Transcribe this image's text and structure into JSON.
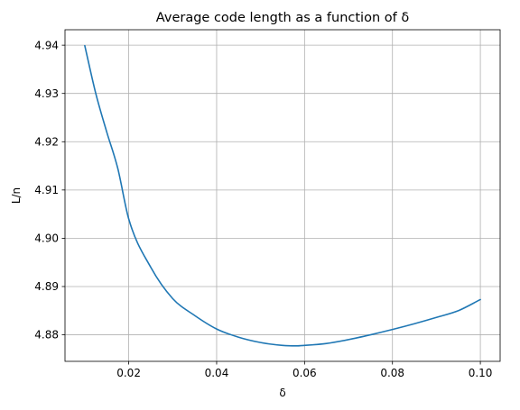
{
  "chart_data": {
    "type": "line",
    "title": "Average code length as a function of δ",
    "xlabel": "δ",
    "ylabel": "L/n",
    "xlim": [
      0.0055,
      0.1045
    ],
    "ylim": [
      4.8745,
      4.9432
    ],
    "xticks": [
      0.02,
      0.04,
      0.06,
      0.08,
      0.1
    ],
    "xtick_labels": [
      "0.02",
      "0.04",
      "0.06",
      "0.08",
      "0.10"
    ],
    "yticks": [
      4.88,
      4.89,
      4.9,
      4.91,
      4.92,
      4.93,
      4.94
    ],
    "ytick_labels": [
      "4.88",
      "4.89",
      "4.90",
      "4.91",
      "4.92",
      "4.93",
      "4.94"
    ],
    "grid": true,
    "series": [
      {
        "color": "#1f77b4",
        "x": [
          0.01,
          0.0125,
          0.015,
          0.0175,
          0.02,
          0.025,
          0.03,
          0.035,
          0.04,
          0.045,
          0.05,
          0.055,
          0.058,
          0.06,
          0.065,
          0.07,
          0.075,
          0.08,
          0.085,
          0.09,
          0.095,
          0.1
        ],
        "y": [
          4.9399,
          4.93,
          4.922,
          4.9145,
          4.904,
          4.894,
          4.8875,
          4.884,
          4.8812,
          4.8795,
          4.8784,
          4.8778,
          4.8777,
          4.8778,
          4.8782,
          4.879,
          4.88,
          4.8811,
          4.8823,
          4.8836,
          4.885,
          4.8873
        ]
      }
    ]
  }
}
